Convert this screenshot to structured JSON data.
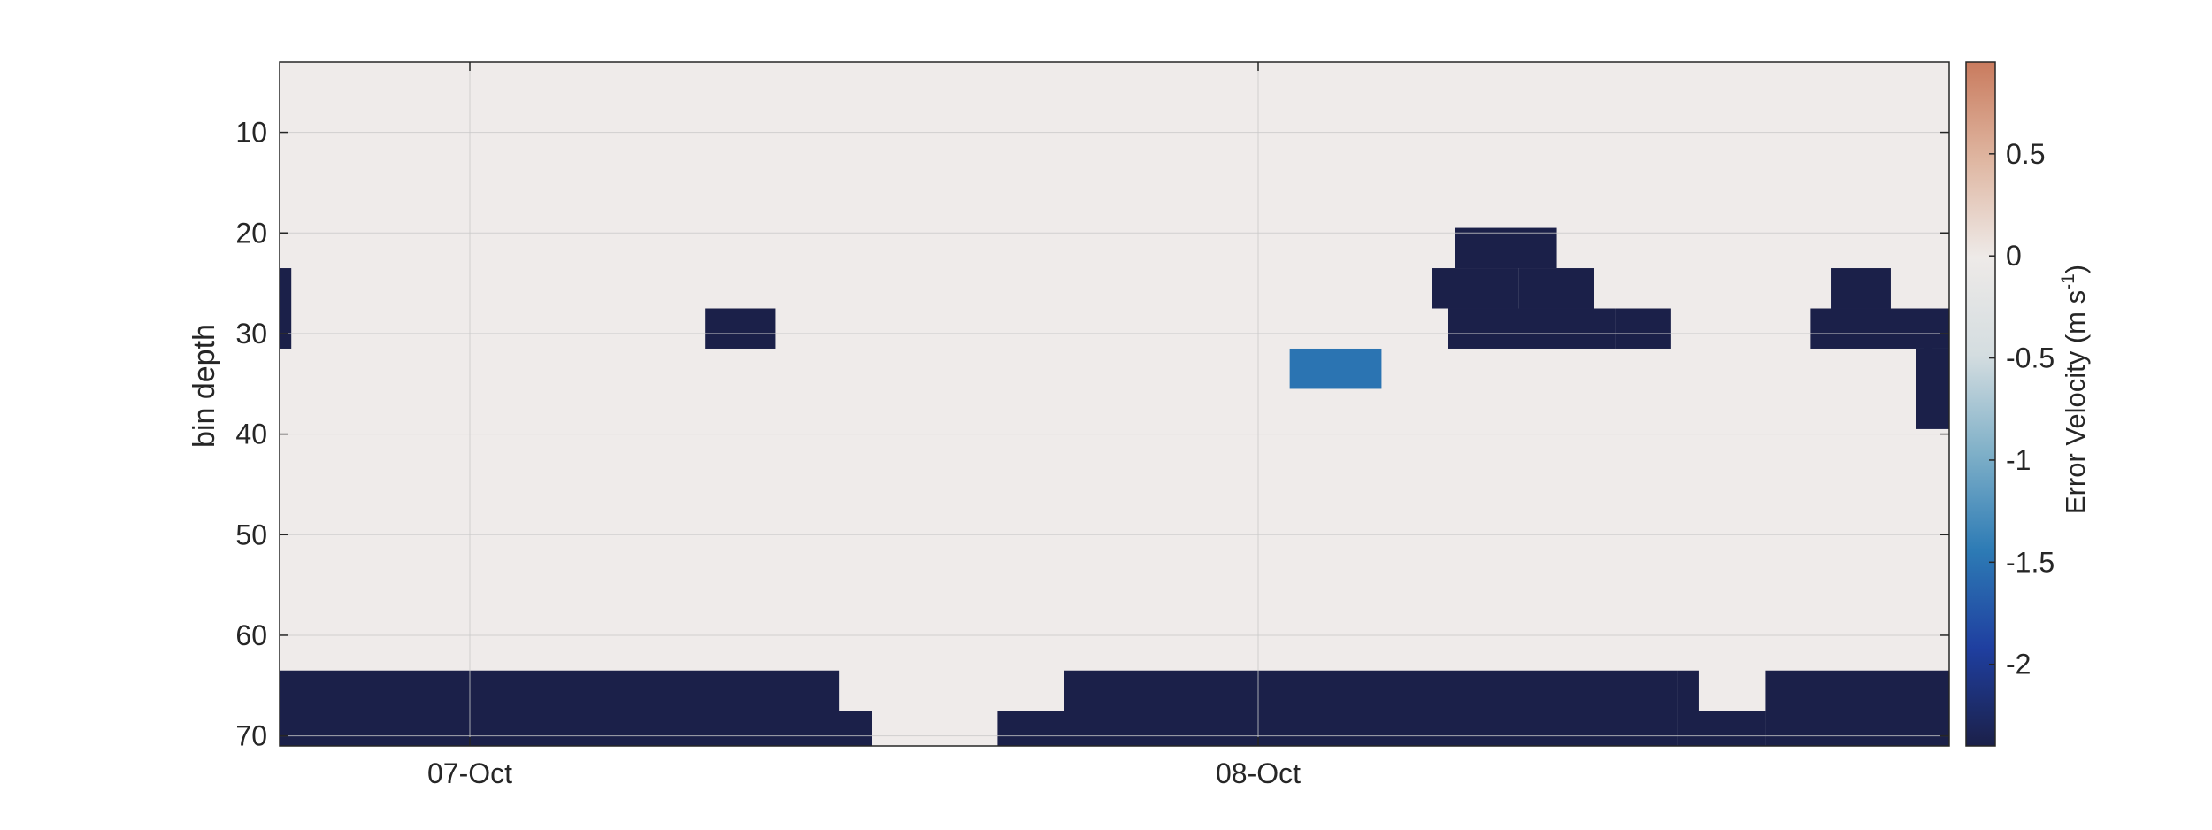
{
  "chart_data": {
    "type": "heatmap",
    "title": "",
    "xlabel": "",
    "ylabel": "bin depth",
    "x_tick_labels": [
      "07-Oct",
      "08-Oct"
    ],
    "y_ticks": [
      10,
      20,
      30,
      40,
      50,
      60,
      70
    ],
    "y_range": [
      3,
      71
    ],
    "y_reversed": true,
    "grid": true,
    "colorbar": {
      "label": "Error Velocity (m s",
      "label_exp": "-1",
      "label_close": ")",
      "range": [
        -2.4,
        0.95
      ],
      "ticks": [
        0.5,
        0,
        -0.5,
        -1,
        -1.5,
        -2
      ],
      "tick_labels": [
        "0.5",
        "0",
        "-0.5",
        "-1",
        "-1.5",
        "-2"
      ],
      "colors": [
        "#1b2049",
        "#1f3fa0",
        "#2d7bb5",
        "#7fb0c8",
        "#d4dde0",
        "#eeeae8",
        "#dfb6a1",
        "#c97b5e"
      ]
    },
    "background_value": 0,
    "background_color": "#efebea",
    "blocks": [
      {
        "name": "bottom-floor-left",
        "time": [
          0.0,
          0.335
        ],
        "bins": [
          63.5,
          67.5
        ],
        "value": -2.4
      },
      {
        "name": "bottom-floor-left-lower",
        "time": [
          0.0,
          0.355
        ],
        "bins": [
          67.5,
          71
        ],
        "value": -2.4
      },
      {
        "name": "bottom-floor-mid-lower",
        "time": [
          0.43,
          0.47
        ],
        "bins": [
          67.5,
          71
        ],
        "value": -2.4
      },
      {
        "name": "bottom-floor-right",
        "time": [
          0.47,
          0.837
        ],
        "bins": [
          63.5,
          71
        ],
        "value": -2.4
      },
      {
        "name": "bottom-floor-step",
        "time": [
          0.837,
          0.85
        ],
        "bins": [
          63.5,
          67.5
        ],
        "value": -2.4
      },
      {
        "name": "bottom-floor-step-lower",
        "time": [
          0.837,
          0.89
        ],
        "bins": [
          67.5,
          71
        ],
        "value": -2.4
      },
      {
        "name": "bottom-floor-far-right",
        "time": [
          0.89,
          1.0
        ],
        "bins": [
          63.5,
          71
        ],
        "value": -2.4
      },
      {
        "name": "left-edge-block",
        "time": [
          0.0,
          0.007
        ],
        "bins": [
          23.5,
          31.5
        ],
        "value": -2.4
      },
      {
        "name": "patch-07oct-30",
        "time": [
          0.255,
          0.297
        ],
        "bins": [
          27.5,
          31.5
        ],
        "value": -2.4
      },
      {
        "name": "surface-band-08oct-a",
        "time": [
          0.7,
          0.8
        ],
        "bins": [
          27.5,
          31.5
        ],
        "value": -2.4
      },
      {
        "name": "surface-band-08oct-b",
        "time": [
          0.69,
          0.742
        ],
        "bins": [
          23.5,
          27.5
        ],
        "value": -2.4
      },
      {
        "name": "surface-band-08oct-c",
        "time": [
          0.704,
          0.765
        ],
        "bins": [
          19.5,
          23.5
        ],
        "value": -2.4
      },
      {
        "name": "surface-band-08oct-d",
        "time": [
          0.742,
          0.787
        ],
        "bins": [
          23.5,
          27.5
        ],
        "value": -2.4
      },
      {
        "name": "surface-band-08oct-e",
        "time": [
          0.8,
          0.833
        ],
        "bins": [
          27.5,
          31.5
        ],
        "value": -2.4
      },
      {
        "name": "surface-band-08oct-f",
        "time": [
          0.917,
          0.99
        ],
        "bins": [
          27.5,
          31.5
        ],
        "value": -2.4
      },
      {
        "name": "surface-band-08oct-g",
        "time": [
          0.929,
          0.965
        ],
        "bins": [
          23.5,
          27.5
        ],
        "value": -2.4
      },
      {
        "name": "right-edge-deep",
        "time": [
          0.98,
          1.0
        ],
        "bins": [
          31.5,
          39.5
        ],
        "value": -2.4
      },
      {
        "name": "right-edge-top",
        "time": [
          0.985,
          1.0
        ],
        "bins": [
          27.5,
          31.5
        ],
        "value": -2.4
      },
      {
        "name": "mid-08oct-spikes",
        "time": [
          0.605,
          0.66
        ],
        "bins": [
          31.5,
          35.5
        ],
        "value": -1.5
      }
    ]
  }
}
